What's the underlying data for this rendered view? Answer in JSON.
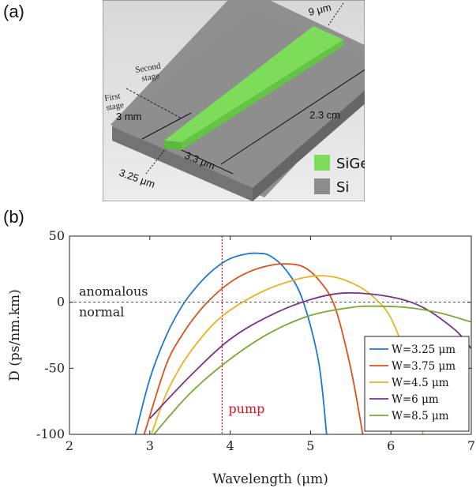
{
  "panel_a": {
    "label": "(a)",
    "dimensions": {
      "end_width": "9 μm",
      "start_width": "3.25 μm",
      "first_stage_length": "3 mm",
      "taper_length": "3.3 μm",
      "total_length": "2.3 cm",
      "second_stage": "Second\nstage",
      "first_stage": "First\nstage"
    },
    "legend": [
      {
        "label": "SiGe",
        "color": "#7ddc5a"
      },
      {
        "label": "Si",
        "color": "#8c8c8c"
      }
    ]
  },
  "panel_b": {
    "label": "(b)"
  },
  "chart_data": {
    "type": "line",
    "xlabel": "Wavelength (μm)",
    "ylabel": "D (ps/nm.km)",
    "xlim": [
      2,
      7
    ],
    "ylim": [
      -100,
      50
    ],
    "xticks": [
      2,
      3,
      4,
      5,
      6,
      7
    ],
    "yticks": [
      -100,
      -50,
      0,
      50
    ],
    "ytick_labels": [
      "-100",
      "-50",
      "0",
      "50"
    ],
    "pump": {
      "x": 3.9,
      "label": "pump",
      "color": "#e8101a"
    },
    "zero_line_labels": {
      "above": "anomalous",
      "below": "normal"
    },
    "series": [
      {
        "name": "W=3.25 μm",
        "color": "#1f77d0",
        "x": [
          2.82,
          3.0,
          3.2,
          3.4,
          3.6,
          3.8,
          4.0,
          4.2,
          4.35,
          4.5,
          4.7,
          4.9,
          5.1,
          5.2
        ],
        "y": [
          -100,
          -58,
          -26,
          -3,
          13,
          25,
          33,
          36.5,
          37,
          35,
          24,
          2,
          -45,
          -100
        ]
      },
      {
        "name": "W=3.75 μm",
        "color": "#d95319",
        "x": [
          2.93,
          3.2,
          3.4,
          3.6,
          3.8,
          4.0,
          4.2,
          4.4,
          4.65,
          4.9,
          5.1,
          5.3,
          5.5,
          5.65
        ],
        "y": [
          -100,
          -48,
          -25,
          -8,
          5,
          15,
          22,
          26.5,
          29,
          27,
          17,
          -3,
          -50,
          -100
        ]
      },
      {
        "name": "W=4.5 μm",
        "color": "#edb120",
        "x": [
          3.02,
          3.2,
          3.4,
          3.6,
          3.8,
          4.0,
          4.3,
          4.6,
          5.0,
          5.3,
          5.6,
          5.8,
          6.0,
          6.2,
          6.4
        ],
        "y": [
          -100,
          -70,
          -47,
          -30,
          -16,
          -6,
          5,
          13,
          19.5,
          19,
          12,
          3,
          -12,
          -45,
          -100
        ]
      },
      {
        "name": "W=6 μm",
        "color": "#7e2f8e",
        "x": [
          3.0,
          3.5,
          4.0,
          4.5,
          5.0,
          5.45,
          6.0,
          6.4,
          6.8,
          7.0
        ],
        "y": [
          -88,
          -56,
          -28,
          -10,
          2,
          7,
          4,
          -4,
          -21,
          -35
        ]
      },
      {
        "name": "W=8.5 μm",
        "color": "#77ac30",
        "x": [
          3.05,
          3.5,
          4.0,
          4.5,
          5.0,
          5.5,
          5.8,
          6.2,
          6.6,
          7.0
        ],
        "y": [
          -100,
          -69,
          -43,
          -23,
          -10,
          -4,
          -3,
          -4,
          -8,
          -15
        ]
      }
    ]
  }
}
